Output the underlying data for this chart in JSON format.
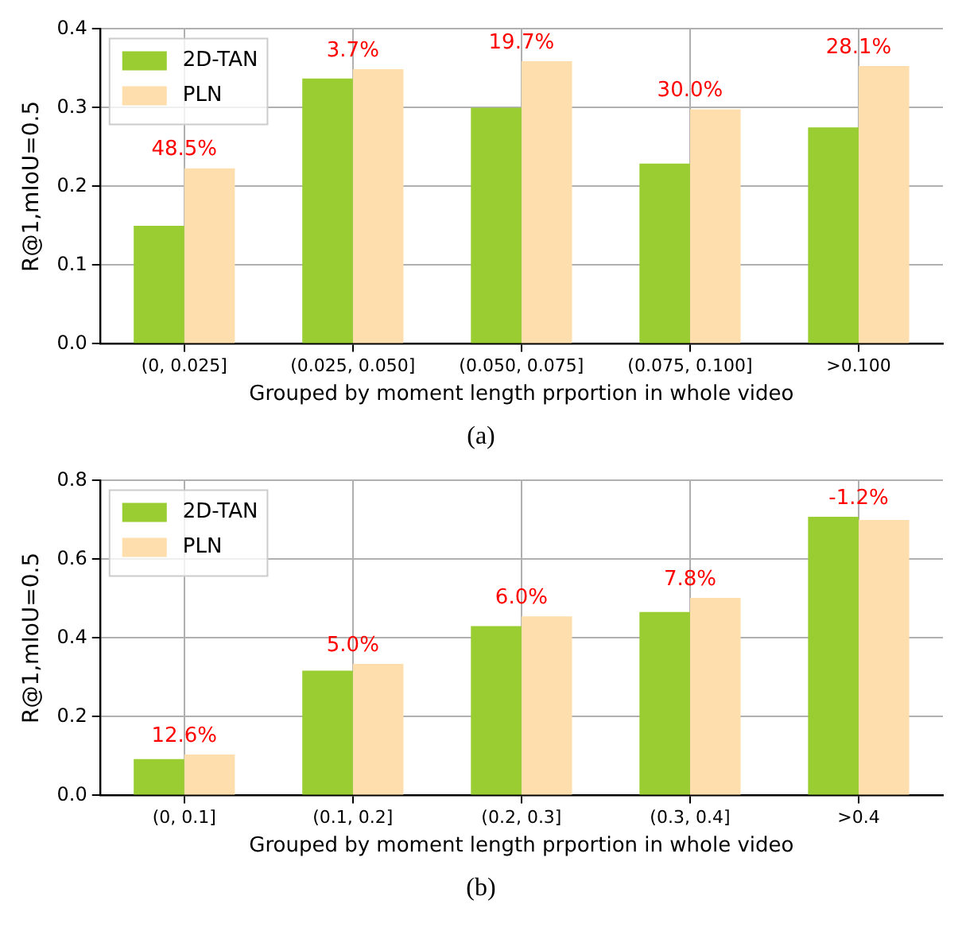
{
  "chart_data": [
    {
      "type": "bar",
      "xlabel": "Grouped by moment length prportion in whole video",
      "ylabel": "R@1,mIoU=0.5",
      "categories": [
        "(0, 0.025]",
        "(0.025, 0.050]",
        "(0.050, 0.075]",
        "(0.075, 0.100]",
        ">0.100"
      ],
      "series": [
        {
          "name": "2D-TAN",
          "color": "#9acd32",
          "values": [
            0.15,
            0.337,
            0.3,
            0.229,
            0.275
          ]
        },
        {
          "name": "PLN",
          "color": "#ffdead",
          "values": [
            0.223,
            0.349,
            0.359,
            0.298,
            0.353
          ]
        }
      ],
      "ylim": [
        0,
        0.4
      ],
      "yticks": [
        {
          "value": 0,
          "label": "0.0"
        },
        {
          "value": 0.1,
          "label": "0.1"
        },
        {
          "value": 0.2,
          "label": "0.2"
        },
        {
          "value": 0.3,
          "label": "0.3"
        },
        {
          "value": 0.4,
          "label": "0.4"
        }
      ],
      "grid": true,
      "legend": "top left",
      "annotations": [
        {
          "text": "48.5%",
          "x": "(0, 0.025]",
          "y": 0.223
        },
        {
          "text": "3.7%",
          "x": "(0.025, 0.050]",
          "y": 0.349
        },
        {
          "text": "19.7%",
          "x": "(0.050, 0.075]",
          "y": 0.359
        },
        {
          "text": "30.0%",
          "x": "(0.075, 0.100]",
          "y": 0.298
        },
        {
          "text": "28.1%",
          "x": ">0.100",
          "y": 0.353
        },
        "(a)"
      ]
    },
    {
      "type": "bar",
      "xlabel": "Grouped by moment length prportion in whole video",
      "ylabel": "R@1,mIoU=0.5",
      "categories": [
        "(0, 0.1]",
        "(0.1, 0.2]",
        "(0.2, 0.3]",
        "(0.3, 0.4]",
        ">0.4"
      ],
      "series": [
        {
          "name": "2D-TAN",
          "color": "#9acd32",
          "values": [
            0.092,
            0.317,
            0.43,
            0.466,
            0.708
          ]
        },
        {
          "name": "PLN",
          "color": "#ffdead",
          "values": [
            0.104,
            0.334,
            0.455,
            0.502,
            0.7
          ]
        }
      ],
      "ylim": [
        0,
        0.8
      ],
      "yticks": [
        {
          "value": 0,
          "label": "0.0"
        },
        {
          "value": 0.2,
          "label": "0.2"
        },
        {
          "value": 0.4,
          "label": "0.4"
        },
        {
          "value": 0.6,
          "label": "0.6"
        },
        {
          "value": 0.8,
          "label": "0.8"
        }
      ],
      "grid": true,
      "legend": "top left",
      "annotations": [
        {
          "text": "12.6%",
          "x": "(0, 0.1]",
          "y": 0.104
        },
        {
          "text": "5.0%",
          "x": "(0.1, 0.2]",
          "y": 0.334
        },
        {
          "text": "6.0%",
          "x": "(0.2, 0.3]",
          "y": 0.455
        },
        {
          "text": "7.8%",
          "x": "(0.3, 0.4]",
          "y": 0.502
        },
        {
          "text": "-1.2%",
          "x": ">0.4",
          "y": 0.708
        },
        "(b)"
      ]
    }
  ]
}
